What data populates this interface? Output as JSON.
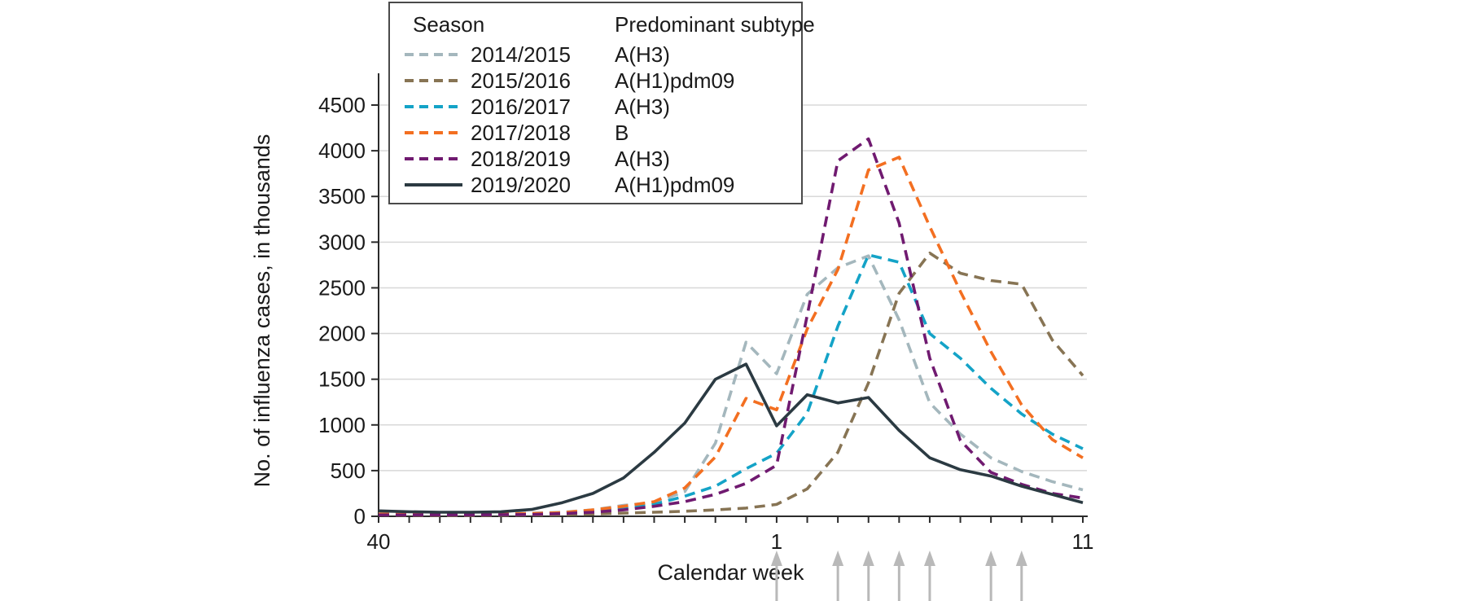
{
  "figure": {
    "y_axis_title": "No. of influenza cases, in thousands",
    "x_axis_title": "Calendar week",
    "legend": {
      "season_header": "Season",
      "subtype_header": "Predominant subtype"
    }
  },
  "colors": {
    "axis": "#2b2b2b",
    "gridline": "#d8d8d8",
    "text": "#1a1a1a",
    "arrow": "#b9b9b9",
    "legend_border": "#4a4a4a",
    "background": "#ffffff"
  },
  "chart_data": {
    "type": "line",
    "title": "",
    "xlabel": "Calendar week",
    "ylabel": "No. of influenza cases, in thousands",
    "categories": [
      "40",
      "41",
      "42",
      "43",
      "44",
      "45",
      "46",
      "47",
      "48",
      "49",
      "50",
      "51",
      "52",
      "1",
      "2",
      "3",
      "4",
      "5",
      "6",
      "7",
      "8",
      "9",
      "10",
      "11"
    ],
    "x_tick_labels_shown": [
      "40",
      "1",
      "11"
    ],
    "y_ticks": [
      0,
      500,
      1000,
      1500,
      2000,
      2500,
      3000,
      3500,
      4000,
      4500
    ],
    "ylim": [
      0,
      4500
    ],
    "grid": "horizontal",
    "legend_position": "top-left-box",
    "series": [
      {
        "name": "2014/2015",
        "subtype": "A(H3)",
        "color": "#a4b7bd",
        "style": "dashed",
        "values": [
          30,
          25,
          25,
          25,
          30,
          35,
          45,
          70,
          120,
          150,
          270,
          800,
          1905,
          1560,
          2430,
          2720,
          2850,
          2150,
          1240,
          900,
          640,
          490,
          380,
          290
        ]
      },
      {
        "name": "2015/2016",
        "subtype": "A(H1)pdm09",
        "color": "#877454",
        "style": "dashed",
        "values": [
          15,
          12,
          10,
          10,
          12,
          15,
          18,
          25,
          35,
          45,
          55,
          70,
          90,
          130,
          300,
          700,
          1460,
          2440,
          2880,
          2660,
          2580,
          2540,
          1930,
          1540
        ]
      },
      {
        "name": "2016/2017",
        "subtype": "A(H3)",
        "color": "#14a3c7",
        "style": "dashed",
        "values": [
          20,
          18,
          18,
          18,
          20,
          25,
          35,
          60,
          90,
          130,
          220,
          330,
          520,
          690,
          1130,
          2080,
          2860,
          2780,
          2000,
          1730,
          1400,
          1120,
          900,
          740
        ]
      },
      {
        "name": "2017/2018",
        "subtype": "B",
        "color": "#f36f21",
        "style": "dashed",
        "values": [
          25,
          20,
          20,
          20,
          25,
          30,
          40,
          70,
          110,
          160,
          310,
          650,
          1290,
          1165,
          2050,
          2700,
          3790,
          3930,
          3170,
          2460,
          1800,
          1220,
          840,
          640
        ]
      },
      {
        "name": "2018/2019",
        "subtype": "A(H3)",
        "color": "#701a70",
        "style": "dashed",
        "values": [
          15,
          15,
          15,
          15,
          18,
          20,
          30,
          45,
          70,
          110,
          160,
          240,
          360,
          560,
          2200,
          3890,
          4130,
          3210,
          1730,
          830,
          480,
          350,
          250,
          200
        ]
      },
      {
        "name": "2019/2020",
        "subtype": "A(H1)pdm09",
        "color": "#2b3a42",
        "style": "solid",
        "values": [
          60,
          50,
          45,
          45,
          50,
          75,
          150,
          250,
          420,
          700,
          1020,
          1500,
          1665,
          990,
          1330,
          1240,
          1300,
          940,
          640,
          510,
          440,
          330,
          240,
          150
        ]
      }
    ],
    "annotations": {
      "arrow_weeks": [
        "1",
        "3",
        "4",
        "5",
        "6",
        "8",
        "9"
      ],
      "arrow_direction": "up",
      "arrow_color": "#b9b9b9"
    }
  }
}
